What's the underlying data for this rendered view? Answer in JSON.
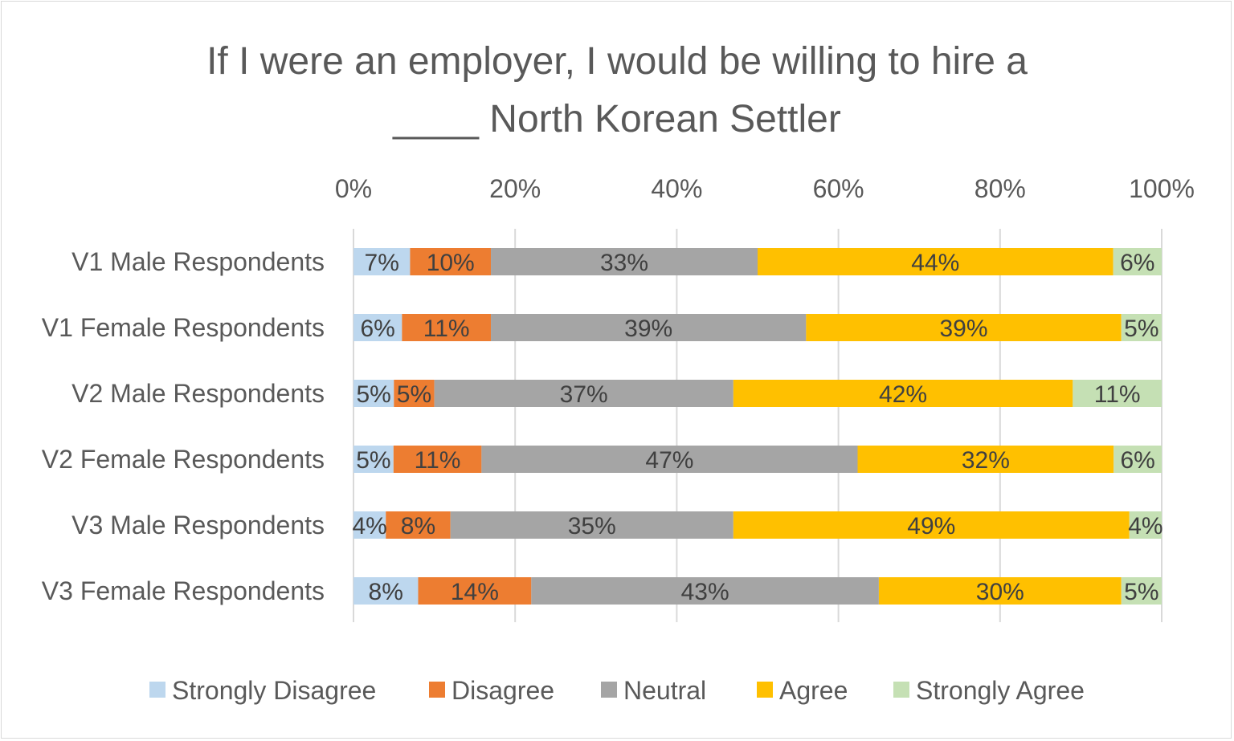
{
  "chart_data": {
    "type": "bar",
    "orientation": "horizontal",
    "stacked": "percent",
    "title_lines": [
      "If I were an employer, I would be willing to hire a",
      "____ North Korean Settler"
    ],
    "x_ticks": [
      "0%",
      "20%",
      "40%",
      "60%",
      "80%",
      "100%"
    ],
    "xlim": [
      0,
      100
    ],
    "grid": true,
    "legend_position": "bottom",
    "categories": [
      "V1 Male Respondents",
      "V1 Female Respondents",
      "V2 Male Respondents",
      "V2 Female Respondents",
      "V3 Male Respondents",
      "V3 Female Respondents"
    ],
    "series": [
      {
        "name": "Strongly Disagree",
        "color": "#bdd7ee",
        "values": [
          7,
          6,
          5,
          5,
          4,
          8
        ],
        "labels": [
          "7%",
          "6%",
          "5%",
          "5%",
          "4%",
          "8%"
        ]
      },
      {
        "name": "Disagree",
        "color": "#ed7d31",
        "values": [
          10,
          11,
          5,
          11,
          8,
          14
        ],
        "labels": [
          "10%",
          "11%",
          "5%",
          "11%",
          "8%",
          "14%"
        ]
      },
      {
        "name": "Neutral",
        "color": "#a5a5a5",
        "values": [
          33,
          39,
          37,
          47,
          35,
          43
        ],
        "labels": [
          "33%",
          "39%",
          "37%",
          "47%",
          "35%",
          "43%"
        ]
      },
      {
        "name": "Agree",
        "color": "#ffc000",
        "values": [
          44,
          39,
          42,
          32,
          49,
          30
        ],
        "labels": [
          "44%",
          "39%",
          "42%",
          "32%",
          "49%",
          "30%"
        ]
      },
      {
        "name": "Strongly Agree",
        "color": "#c5e0b4",
        "values": [
          6,
          5,
          11,
          6,
          4,
          5
        ],
        "labels": [
          "6%",
          "5%",
          "11%",
          "6%",
          "4%",
          "5%"
        ]
      }
    ]
  }
}
